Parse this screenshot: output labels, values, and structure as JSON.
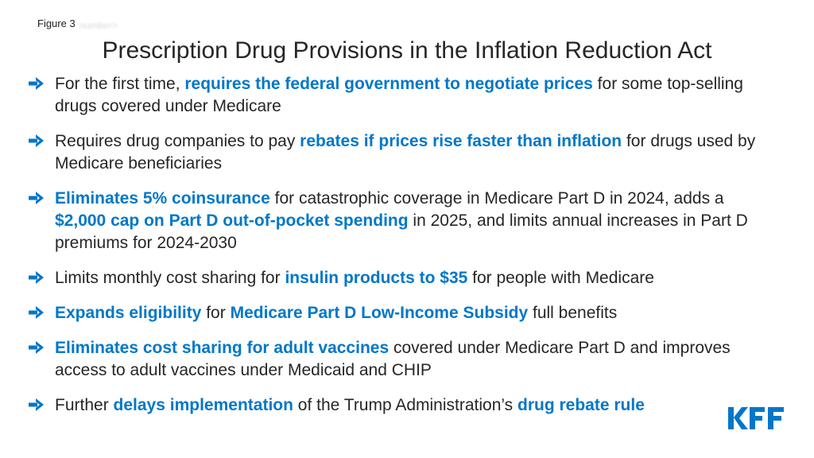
{
  "figure_label": "Figure 3",
  "ghost_label": "number>",
  "title": "Prescription Drug Provisions in the Inflation Reduction Act",
  "accent_color": "#0077c8",
  "text_color": "#262626",
  "bullet_icon": "right-arrow-icon",
  "bullets": [
    {
      "segments": [
        {
          "text": "For the first time, ",
          "hl": false
        },
        {
          "text": "requires the federal government to negotiate prices",
          "hl": true
        },
        {
          "text": " for some top-selling drugs covered under Medicare",
          "hl": false
        }
      ]
    },
    {
      "segments": [
        {
          "text": "Requires drug companies to pay ",
          "hl": false
        },
        {
          "text": "rebates if prices rise faster than inflation",
          "hl": true
        },
        {
          "text": " for drugs used by Medicare beneficiaries",
          "hl": false
        }
      ]
    },
    {
      "segments": [
        {
          "text": "Eliminates 5% coinsurance",
          "hl": true
        },
        {
          "text": " for catastrophic coverage in Medicare Part D in 2024, adds a ",
          "hl": false
        },
        {
          "text": "$2,000 cap on Part D out-of-pocket spending",
          "hl": true
        },
        {
          "text": " in 2025, and limits annual increases in Part D premiums for 2024-2030",
          "hl": false
        }
      ]
    },
    {
      "segments": [
        {
          "text": "Limits monthly cost sharing for ",
          "hl": false
        },
        {
          "text": "insulin products to $35",
          "hl": true
        },
        {
          "text": " for people with Medicare",
          "hl": false
        }
      ]
    },
    {
      "segments": [
        {
          "text": "Expands eligibility",
          "hl": true
        },
        {
          "text": " for ",
          "hl": false
        },
        {
          "text": "Medicare Part D Low-Income Subsidy",
          "hl": true
        },
        {
          "text": " full benefits",
          "hl": false
        }
      ]
    },
    {
      "segments": [
        {
          "text": "Eliminates cost sharing for adult vaccines",
          "hl": true
        },
        {
          "text": " covered under Medicare Part D and improves access to adult vaccines under Medicaid and CHIP",
          "hl": false
        }
      ]
    },
    {
      "segments": [
        {
          "text": "Further ",
          "hl": false
        },
        {
          "text": "delays implementation",
          "hl": true
        },
        {
          "text": " of the Trump Administration’s ",
          "hl": false
        },
        {
          "text": "drug rebate rule",
          "hl": true
        }
      ]
    }
  ],
  "logo": {
    "text": "KFF",
    "icon": "kff-logo"
  }
}
